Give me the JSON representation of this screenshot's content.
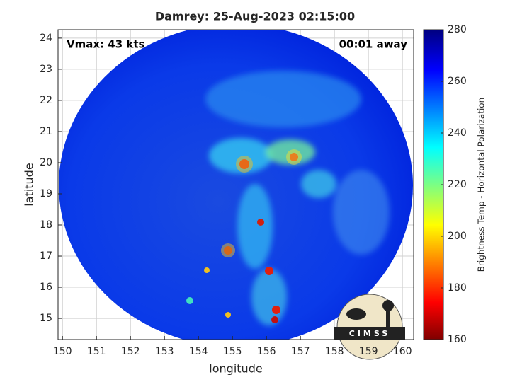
{
  "chart_data": {
    "type": "image",
    "title": "Damrey: 25-Aug-2023 02:15:00",
    "annotations": [
      "Vmax: 43 kts",
      "00:01 away"
    ],
    "xlabel": "longitude",
    "ylabel": "latitude",
    "xlim": [
      149.87,
      160.33
    ],
    "xticks": [
      150,
      151,
      152,
      153,
      154,
      155,
      156,
      157,
      158,
      159,
      160
    ],
    "ylim": [
      14.32,
      24.27
    ],
    "yticks": [
      15,
      16,
      17,
      18,
      19,
      20,
      21,
      22,
      23,
      24
    ],
    "grid": true,
    "colorbar_label": "Brightness Temp - Horizontal Polarization",
    "clim": [
      160,
      280
    ],
    "cticks": [
      160,
      180,
      200,
      220,
      240,
      260,
      280
    ],
    "logo_text": "CIMSS"
  }
}
